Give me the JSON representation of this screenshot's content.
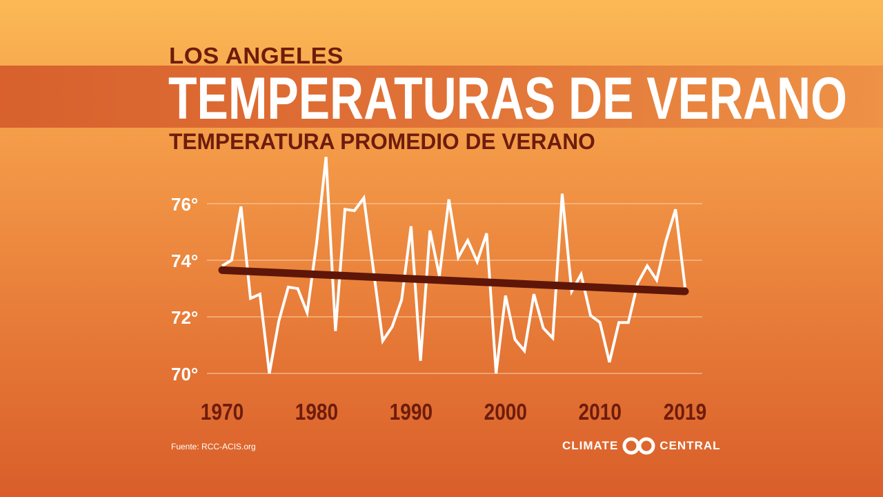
{
  "header": {
    "kicker": "LOS ANGELES",
    "title": "TEMPERATURAS DE VERANO",
    "subtitle": "TEMPERATURA PROMEDIO DE VERANO"
  },
  "footer": {
    "source": "Fuente: RCC-ACIS.org",
    "logo_left": "CLIMATE",
    "logo_right": "CENTRAL"
  },
  "colors": {
    "line": "#ffffff",
    "trend": "#5e1608",
    "axis_text": "#6e1c0c",
    "y_label": "#ffffff"
  },
  "chart_data": {
    "type": "line",
    "title": "TEMPERATURA PROMEDIO DE VERANO",
    "xlabel": "",
    "ylabel": "",
    "x_ticks": [
      "1970",
      "1980",
      "1990",
      "2000",
      "2010",
      "2019"
    ],
    "y_ticks": [
      "70°",
      "72°",
      "74°",
      "76°"
    ],
    "ylim": [
      70,
      77.7
    ],
    "xlim": [
      1970,
      2019
    ],
    "grid": true,
    "x": [
      1970,
      1971,
      1972,
      1973,
      1974,
      1975,
      1976,
      1977,
      1978,
      1979,
      1980,
      1981,
      1982,
      1983,
      1984,
      1985,
      1986,
      1987,
      1988,
      1989,
      1990,
      1991,
      1992,
      1993,
      1994,
      1995,
      1996,
      1997,
      1998,
      1999,
      2000,
      2001,
      2002,
      2003,
      2004,
      2005,
      2006,
      2007,
      2008,
      2009,
      2010,
      2011,
      2012,
      2013,
      2014,
      2015,
      2016,
      2017,
      2018,
      2019
    ],
    "series": [
      {
        "values": [
          73.8,
          74.0,
          75.9,
          72.65,
          72.8,
          70.0,
          71.85,
          73.05,
          73.0,
          72.15,
          74.6,
          77.65,
          71.5,
          75.8,
          75.75,
          76.2,
          73.7,
          71.15,
          71.65,
          72.6,
          75.2,
          70.45,
          75.05,
          73.45,
          76.15,
          74.1,
          74.7,
          73.95,
          74.95,
          70.0,
          72.75,
          71.2,
          70.8,
          72.8,
          71.6,
          71.25,
          76.35,
          72.9,
          73.5,
          72.05,
          71.8,
          70.4,
          71.8,
          71.8,
          73.2,
          73.8,
          73.3,
          74.7,
          75.8,
          73.05
        ]
      }
    ],
    "trend": {
      "start": [
        1970,
        73.65
      ],
      "end": [
        2019,
        72.9
      ]
    }
  }
}
